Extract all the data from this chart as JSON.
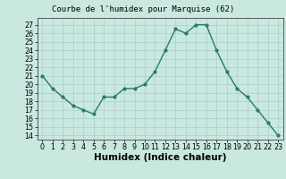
{
  "x": [
    0,
    1,
    2,
    3,
    4,
    5,
    6,
    7,
    8,
    9,
    10,
    11,
    12,
    13,
    14,
    15,
    16,
    17,
    18,
    19,
    20,
    21,
    22,
    23
  ],
  "y": [
    21.0,
    19.5,
    18.5,
    17.5,
    17.0,
    16.5,
    18.5,
    18.5,
    19.5,
    19.5,
    20.0,
    21.5,
    24.0,
    26.5,
    26.0,
    27.0,
    27.0,
    24.0,
    21.5,
    19.5,
    18.5,
    17.0,
    15.5,
    14.0
  ],
  "title": "Courbe de l'humidex pour Marquise (62)",
  "xlabel": "Humidex (Indice chaleur)",
  "ylabel": "",
  "xlim": [
    -0.5,
    23.5
  ],
  "ylim": [
    13.5,
    27.8
  ],
  "yticks": [
    14,
    15,
    16,
    17,
    18,
    19,
    20,
    21,
    22,
    23,
    24,
    25,
    26,
    27
  ],
  "xticks": [
    0,
    1,
    2,
    3,
    4,
    5,
    6,
    7,
    8,
    9,
    10,
    11,
    12,
    13,
    14,
    15,
    16,
    17,
    18,
    19,
    20,
    21,
    22,
    23
  ],
  "line_color": "#2a7a6a",
  "marker_color": "#2a7a6a",
  "bg_color": "#c8e8e0",
  "grid_color": "#aacfc8",
  "title_fontsize": 6.5,
  "xlabel_fontsize": 7.5,
  "tick_fontsize": 5.8,
  "line_width": 1.0,
  "marker_size": 2.0
}
